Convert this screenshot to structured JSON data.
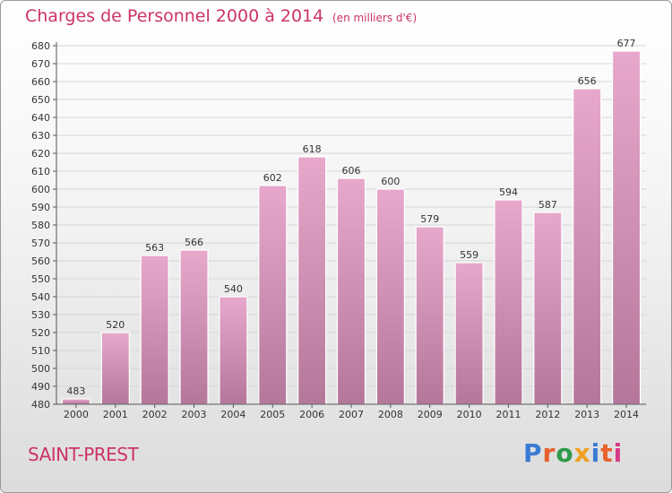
{
  "title": "Charges de Personnel 2000 à 2014",
  "subtitle": "(en milliers d'€)",
  "commune": "SAINT-PREST",
  "logo": {
    "text": "Proxiti",
    "letter_colors": [
      "#3a7bd5",
      "#e8602c",
      "#2e9a4a",
      "#f0a020",
      "#3a7bd5",
      "#e8602c",
      "#d83a8a"
    ]
  },
  "colors": {
    "title": "#cc3366",
    "bar_light": "#e7a8cc",
    "bar_dark": "#b4779a",
    "grid": "#d6d6d6"
  },
  "chart_data": {
    "type": "bar",
    "title": "Charges de Personnel 2000 à 2014",
    "subtitle": "(en milliers d'€)",
    "categories": [
      "2000",
      "2001",
      "2002",
      "2003",
      "2004",
      "2005",
      "2006",
      "2007",
      "2008",
      "2009",
      "2010",
      "2011",
      "2012",
      "2013",
      "2014"
    ],
    "values": [
      483,
      520,
      563,
      566,
      540,
      602,
      618,
      606,
      600,
      579,
      559,
      594,
      587,
      656,
      677
    ],
    "ylim": [
      480,
      680
    ],
    "ytick_step": 10,
    "grid": true,
    "data_labels": true
  }
}
